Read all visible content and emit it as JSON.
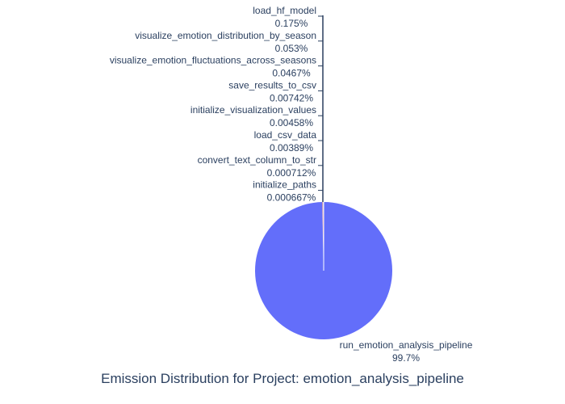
{
  "chart_data": {
    "type": "pie",
    "title": "Emission Distribution for Project: emotion_analysis_pipeline",
    "slices": [
      {
        "name": "run_emotion_analysis_pipeline",
        "value": 99.7,
        "pct_label": "99.7%",
        "color": "#636efa"
      },
      {
        "name": "load_hf_model",
        "value": 0.175,
        "pct_label": "0.175%",
        "color": "#ef553b"
      },
      {
        "name": "visualize_emotion_distribution_by_season",
        "value": 0.053,
        "pct_label": "0.053%",
        "color": "#00cc96"
      },
      {
        "name": "visualize_emotion_fluctuations_across_seasons",
        "value": 0.0467,
        "pct_label": "0.0467%",
        "color": "#ab63fa"
      },
      {
        "name": "save_results_to_csv",
        "value": 0.00742,
        "pct_label": "0.00742%",
        "color": "#ffa15a"
      },
      {
        "name": "initialize_visualization_values",
        "value": 0.00458,
        "pct_label": "0.00458%",
        "color": "#19d3f3"
      },
      {
        "name": "load_csv_data",
        "value": 0.00389,
        "pct_label": "0.00389%",
        "color": "#ff6692"
      },
      {
        "name": "convert_text_column_to_str",
        "value": 0.000712,
        "pct_label": "0.000712%",
        "color": "#b6e880"
      },
      {
        "name": "initialize_paths",
        "value": 0.000667,
        "pct_label": "0.000667%",
        "color": "#ff97ff"
      }
    ],
    "legend": false
  }
}
